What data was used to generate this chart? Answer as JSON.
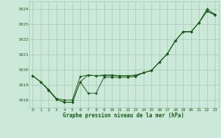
{
  "title": "Graphe pression niveau de la mer (hPa)",
  "background_color": "#cce8d8",
  "grid_color": "#9fc9b0",
  "line_color": "#1a5c1a",
  "xlim": [
    -0.5,
    23.5
  ],
  "ylim": [
    1017.5,
    1024.5
  ],
  "xticks": [
    0,
    1,
    2,
    3,
    4,
    5,
    6,
    7,
    8,
    9,
    10,
    11,
    12,
    13,
    14,
    15,
    16,
    17,
    18,
    19,
    20,
    21,
    22,
    23
  ],
  "yticks": [
    1018,
    1019,
    1020,
    1021,
    1022,
    1023,
    1024
  ],
  "series1": [
    1019.6,
    1019.2,
    1018.7,
    1018.1,
    1018.0,
    1018.0,
    1019.55,
    1019.65,
    1019.6,
    1019.65,
    1019.65,
    1019.6,
    1019.6,
    1019.65,
    1019.8,
    1019.95,
    1020.5,
    1021.05,
    1021.9,
    1022.5,
    1022.5,
    1023.1,
    1023.85,
    1023.6
  ],
  "series2": [
    1019.6,
    1019.2,
    1018.65,
    1018.05,
    1017.85,
    1017.85,
    1019.2,
    1018.45,
    1018.45,
    1019.5,
    1019.5,
    1019.5,
    1019.5,
    1019.55,
    1019.8,
    1019.95,
    1020.5,
    1021.05,
    1021.9,
    1022.5,
    1022.5,
    1023.1,
    1024.0,
    1023.65
  ],
  "series3": [
    1019.6,
    1019.2,
    1018.65,
    1018.05,
    1017.85,
    1017.85,
    1019.2,
    1019.65,
    1019.6,
    1019.6,
    1019.6,
    1019.6,
    1019.6,
    1019.6,
    1019.8,
    1019.95,
    1020.5,
    1021.05,
    1021.9,
    1022.5,
    1022.5,
    1023.1,
    1023.85,
    1023.65
  ]
}
